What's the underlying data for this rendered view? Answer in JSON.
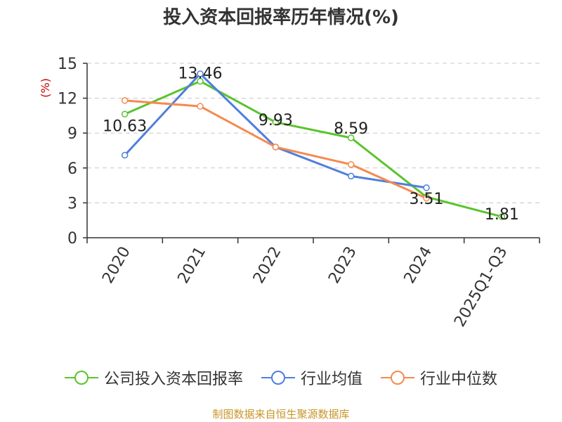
{
  "chart_data": {
    "type": "line",
    "title": "投入资本回报率历年情况(%)",
    "ylabel": "(%)",
    "xlabel": "",
    "categories": [
      "2020",
      "2021",
      "2022",
      "2023",
      "2024",
      "2025Q1-Q3"
    ],
    "ylim": [
      0,
      15
    ],
    "yticks": [
      0,
      3,
      6,
      9,
      12,
      15
    ],
    "grid": true,
    "legend_position": "bottom",
    "series": [
      {
        "name": "公司投入资本回报率",
        "color": "#5ac42d",
        "values": [
          10.63,
          13.46,
          9.93,
          8.59,
          3.51,
          1.81
        ],
        "labels": [
          "10.63",
          "13.46",
          "9.93",
          "8.59",
          "3.51",
          "1.81"
        ]
      },
      {
        "name": "行业均值",
        "color": "#4f7fdc",
        "values": [
          7.1,
          14.1,
          7.8,
          5.3,
          4.3,
          null
        ]
      },
      {
        "name": "行业中位数",
        "color": "#f5894f",
        "values": [
          11.8,
          11.3,
          7.8,
          6.3,
          3.4,
          null
        ]
      }
    ]
  },
  "source": "制图数据来自恒生聚源数据库"
}
